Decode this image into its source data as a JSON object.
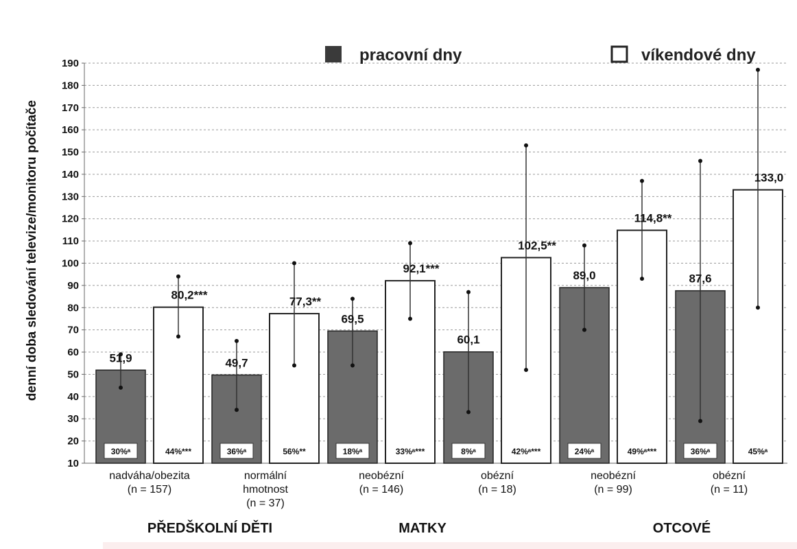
{
  "chart_data": {
    "type": "bar",
    "ylabel": "denní doba sledování televize/monitoru počítače",
    "ylim": [
      10,
      190
    ],
    "yticks": [
      10,
      20,
      30,
      40,
      50,
      60,
      70,
      80,
      90,
      100,
      110,
      120,
      130,
      140,
      150,
      160,
      170,
      180,
      190
    ],
    "grid": true,
    "legend_position": "top",
    "series": [
      {
        "name": "pracovní dny",
        "color": "#6b6b6b",
        "values": [
          51.9,
          49.7,
          69.5,
          60.1,
          89.0,
          87.6
        ],
        "error_low": [
          44,
          34,
          54,
          33,
          70,
          29
        ],
        "error_high": [
          59,
          65,
          84,
          87,
          108,
          146
        ],
        "value_labels": [
          "51,9",
          "49,7",
          "69,5",
          "60,1",
          "89,0",
          "87,6"
        ],
        "percent_labels": [
          "30%ᵃ",
          "36%ᵃ",
          "18%ᵃ",
          "8%ᵃ",
          "24%ᵃ",
          "36%ᵃ"
        ]
      },
      {
        "name": "víkendové dny",
        "color": "#ffffff",
        "values": [
          80.2,
          77.3,
          92.1,
          102.5,
          114.8,
          133.0
        ],
        "error_low": [
          67,
          54,
          75,
          52,
          93,
          80
        ],
        "error_high": [
          94,
          100,
          109,
          153,
          137,
          187
        ],
        "value_labels": [
          "80,2***",
          "77,3**",
          "92,1***",
          "102,5**",
          "114,8**",
          "133,0"
        ],
        "percent_labels": [
          "44%***",
          "56%**",
          "33%ᵃ***",
          "42%ᵃ***",
          "49%ᵃ***",
          "45%ᵃ"
        ]
      }
    ],
    "categories": [
      [
        "nadváha/obezita",
        "(n = 157)"
      ],
      [
        "normální",
        "hmotnost",
        "(n = 37)"
      ],
      [
        "neobézní",
        "(n = 146)"
      ],
      [
        "obézní",
        "(n = 18)"
      ],
      [
        "neobézní",
        "(n = 99)"
      ],
      [
        "obézní",
        "(n = 11)"
      ]
    ],
    "groups": [
      "PŘEDŠKOLNÍ DĚTI",
      "MATKY",
      "OTCOVÉ"
    ]
  }
}
